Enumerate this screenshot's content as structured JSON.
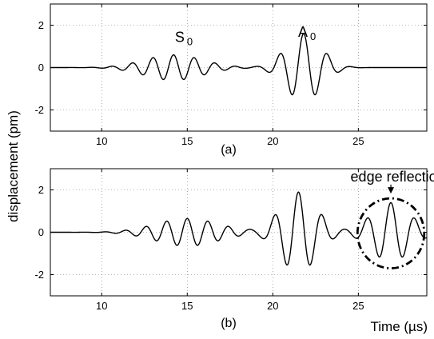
{
  "figure": {
    "ylabel": "displacement (pm)",
    "xlabel": "Time (µs)"
  },
  "chart_data": [
    {
      "type": "line",
      "panel_label": "(a)",
      "xlim": [
        7,
        29
      ],
      "ylim": [
        -3,
        3
      ],
      "xticks": [
        10,
        15,
        20,
        25
      ],
      "yticks": [
        -2,
        0,
        2
      ],
      "grid": true,
      "annotations": [
        {
          "text": "S",
          "sub": "0",
          "x": 14.8,
          "y": 1.2
        },
        {
          "text": "A",
          "sub": "0",
          "x": 22.0,
          "y": 1.45
        }
      ],
      "series": [
        {
          "color": "#000000",
          "packets": [
            {
              "center": 14.2,
              "width": 2.4,
              "amplitude": 0.6,
              "frequency": 0.83
            },
            {
              "center": 21.8,
              "width": 1.45,
              "amplitude": 1.6,
              "frequency": 0.72
            }
          ]
        }
      ]
    },
    {
      "type": "line",
      "panel_label": "(b)",
      "xlim": [
        7,
        29
      ],
      "ylim": [
        -3,
        3
      ],
      "xticks": [
        10,
        15,
        20,
        25
      ],
      "yticks": [
        -2,
        0,
        2
      ],
      "grid": true,
      "annotations": [
        {
          "text": "edge reflection",
          "x": 27.3,
          "y": 2.4,
          "arrow_to": [
            26.9,
            1.6
          ]
        }
      ],
      "highlight": {
        "shape": "dash-dot ellipse",
        "center": [
          26.9,
          -0.05
        ],
        "rx": 1.95,
        "ry": 1.65
      },
      "series": [
        {
          "color": "#000000",
          "packets": [
            {
              "center": 15.0,
              "width": 2.6,
              "amplitude": 0.65,
              "frequency": 0.83
            },
            {
              "center": 21.5,
              "width": 1.5,
              "amplitude": 1.9,
              "frequency": 0.72
            },
            {
              "center": 26.9,
              "width": 1.6,
              "amplitude": 1.4,
              "frequency": 0.72
            }
          ]
        }
      ]
    }
  ]
}
